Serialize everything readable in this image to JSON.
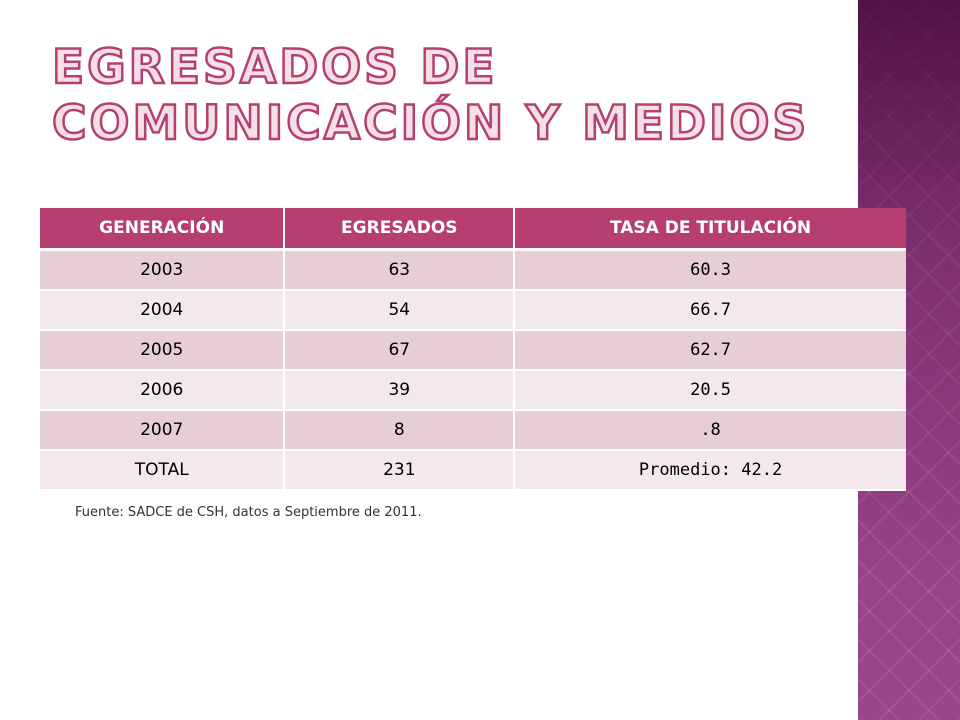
{
  "title": "Egresados de Comunicación y Medios",
  "table": {
    "headers": [
      "GENERACIÓN",
      "EGRESADOS",
      "TASA DE TITULACIÓN"
    ],
    "rows": [
      [
        "2003",
        "63",
        "60.3"
      ],
      [
        "2004",
        "54",
        "66.7"
      ],
      [
        "2005",
        "67",
        "62.7"
      ],
      [
        "2006",
        "39",
        "20.5"
      ],
      [
        "2007",
        "8",
        ".8"
      ],
      [
        "TOTAL",
        "231",
        "Promedio: 42.2"
      ]
    ]
  },
  "source": "Fuente: SADCE de CSH, datos a Septiembre de 2011.",
  "colors": {
    "header_bg": "#b73f6f",
    "row_odd": "#e7cdd4",
    "row_even": "#f3e8ec",
    "title_outline": "#b4406e",
    "side_band": "#8a3f7c"
  }
}
